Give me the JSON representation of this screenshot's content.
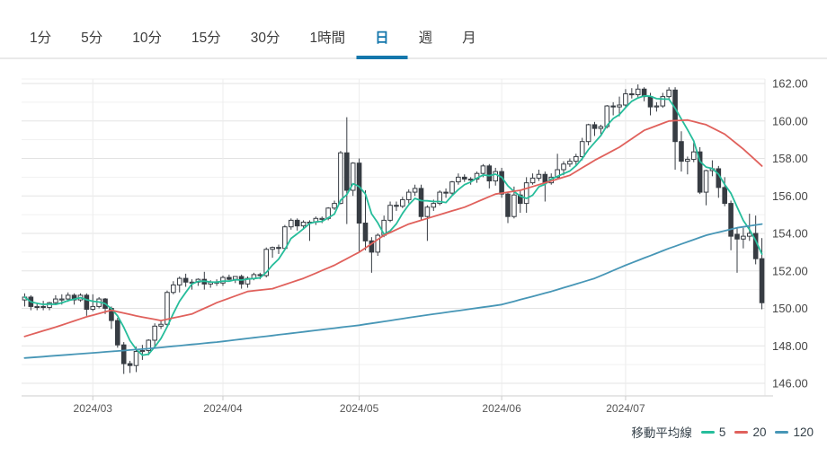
{
  "tabs": {
    "items": [
      {
        "label": "1分",
        "selected": false
      },
      {
        "label": "5分",
        "selected": false
      },
      {
        "label": "10分",
        "selected": false
      },
      {
        "label": "15分",
        "selected": false
      },
      {
        "label": "30分",
        "selected": false
      },
      {
        "label": "1時間",
        "selected": false
      },
      {
        "label": "日",
        "selected": true
      },
      {
        "label": "週",
        "selected": false
      },
      {
        "label": "月",
        "selected": false
      }
    ]
  },
  "chart": {
    "legend": {
      "title": "移動平均線",
      "items": [
        {
          "label": "5",
          "color": "#26bd9b"
        },
        {
          "label": "20",
          "color": "#e0615c"
        },
        {
          "label": "120",
          "color": "#4796b6"
        }
      ]
    }
  },
  "chart_data": {
    "type": "candlestick",
    "interval": "日",
    "y_axis": {
      "min": 146,
      "max": 162,
      "grid_step": 1,
      "label_step": 2,
      "labels": [
        "162.00",
        "160.00",
        "158.00",
        "156.00",
        "154.00",
        "152.00",
        "150.00",
        "148.00",
        "146.00"
      ]
    },
    "x_ticks": [
      {
        "label": "2024/03",
        "candle_index": 11
      },
      {
        "label": "2024/04",
        "candle_index": 32
      },
      {
        "label": "2024/05",
        "candle_index": 54
      },
      {
        "label": "2024/06",
        "candle_index": 77
      },
      {
        "label": "2024/07",
        "candle_index": 97
      }
    ],
    "candle_up_color": "#ffffff",
    "candle_down_color": "#373c43",
    "candle_outline_color": "#373c43",
    "grid_color_major": "#e3e3e3",
    "grid_color_minor": "#f1f1f1",
    "ohlc": [
      [
        150.45,
        150.8,
        150.1,
        150.6
      ],
      [
        150.6,
        150.7,
        149.9,
        150.1
      ],
      [
        150.1,
        150.3,
        149.9,
        150.1
      ],
      [
        150.1,
        150.4,
        149.9,
        150.05
      ],
      [
        150.05,
        150.35,
        149.9,
        150.3
      ],
      [
        150.3,
        150.7,
        150.2,
        150.5
      ],
      [
        150.5,
        150.75,
        150.2,
        150.5
      ],
      [
        150.5,
        150.85,
        150.35,
        150.7
      ],
      [
        150.7,
        150.8,
        150.2,
        150.45
      ],
      [
        150.45,
        150.8,
        150.35,
        150.7
      ],
      [
        150.7,
        150.8,
        149.6,
        149.95
      ],
      [
        149.95,
        150.75,
        149.85,
        150.1
      ],
      [
        150.1,
        150.6,
        150.0,
        150.5
      ],
      [
        150.5,
        150.55,
        149.7,
        150.0
      ],
      [
        150.0,
        150.1,
        148.9,
        149.35
      ],
      [
        149.35,
        149.5,
        147.9,
        148.05
      ],
      [
        148.05,
        148.2,
        146.5,
        147.05
      ],
      [
        147.05,
        147.2,
        146.55,
        146.95
      ],
      [
        146.95,
        147.95,
        146.6,
        147.7
      ],
      [
        147.7,
        148.05,
        147.25,
        147.75
      ],
      [
        147.75,
        148.35,
        147.5,
        148.3
      ],
      [
        148.3,
        149.2,
        148.0,
        149.05
      ],
      [
        149.05,
        149.35,
        148.9,
        149.15
      ],
      [
        149.15,
        150.95,
        149.0,
        150.85
      ],
      [
        150.85,
        151.45,
        150.75,
        151.25
      ],
      [
        151.25,
        151.7,
        150.85,
        151.6
      ],
      [
        151.6,
        151.85,
        151.15,
        151.4
      ],
      [
        151.4,
        151.55,
        151.0,
        151.4
      ],
      [
        151.4,
        151.6,
        151.2,
        151.55
      ],
      [
        151.55,
        151.95,
        151.0,
        151.3
      ],
      [
        151.3,
        151.5,
        151.1,
        151.4
      ],
      [
        151.4,
        151.55,
        151.2,
        151.35
      ],
      [
        151.35,
        151.75,
        151.2,
        151.65
      ],
      [
        151.65,
        151.8,
        151.5,
        151.55
      ],
      [
        151.55,
        151.7,
        151.35,
        151.7
      ],
      [
        151.7,
        151.8,
        151.05,
        151.3
      ],
      [
        151.3,
        151.7,
        151.1,
        151.6
      ],
      [
        151.6,
        151.9,
        151.5,
        151.8
      ],
      [
        151.8,
        151.9,
        151.55,
        151.75
      ],
      [
        151.75,
        153.25,
        151.65,
        153.15
      ],
      [
        153.15,
        153.3,
        152.7,
        153.25
      ],
      [
        153.25,
        153.4,
        152.9,
        153.2
      ],
      [
        153.2,
        154.45,
        153.15,
        154.35
      ],
      [
        154.35,
        154.8,
        154.2,
        154.7
      ],
      [
        154.7,
        154.8,
        154.15,
        154.4
      ],
      [
        154.4,
        154.7,
        154.2,
        154.6
      ],
      [
        154.6,
        154.7,
        153.6,
        154.6
      ],
      [
        154.6,
        154.9,
        154.45,
        154.8
      ],
      [
        154.8,
        154.9,
        154.55,
        154.8
      ],
      [
        154.8,
        155.4,
        154.7,
        155.35
      ],
      [
        155.35,
        155.75,
        155.25,
        155.6
      ],
      [
        155.6,
        158.4,
        155.55,
        158.3
      ],
      [
        158.3,
        160.2,
        154.5,
        156.3
      ],
      [
        156.3,
        157.8,
        156.0,
        157.75
      ],
      [
        157.75,
        158.0,
        153.0,
        154.55
      ],
      [
        154.55,
        156.3,
        153.1,
        153.6
      ],
      [
        153.6,
        153.8,
        151.9,
        153.0
      ],
      [
        153.0,
        154.0,
        152.8,
        153.9
      ],
      [
        153.9,
        154.95,
        153.8,
        154.7
      ],
      [
        154.7,
        155.7,
        154.6,
        155.5
      ],
      [
        155.5,
        155.7,
        155.2,
        155.45
      ],
      [
        155.45,
        155.95,
        155.35,
        155.8
      ],
      [
        155.8,
        156.35,
        155.6,
        156.2
      ],
      [
        156.2,
        156.6,
        156.0,
        156.4
      ],
      [
        156.4,
        156.6,
        154.7,
        154.9
      ],
      [
        154.9,
        155.5,
        153.6,
        155.4
      ],
      [
        155.4,
        155.8,
        155.2,
        155.6
      ],
      [
        155.6,
        156.3,
        155.5,
        156.2
      ],
      [
        156.2,
        156.4,
        155.9,
        156.15
      ],
      [
        156.15,
        156.8,
        156.0,
        156.75
      ],
      [
        156.75,
        157.2,
        156.6,
        157.0
      ],
      [
        157.0,
        157.15,
        156.75,
        156.9
      ],
      [
        156.9,
        157.0,
        156.6,
        156.9
      ],
      [
        156.9,
        157.3,
        156.7,
        157.2
      ],
      [
        157.2,
        157.7,
        157.0,
        157.6
      ],
      [
        157.6,
        157.7,
        156.4,
        156.8
      ],
      [
        156.8,
        157.5,
        156.55,
        157.3
      ],
      [
        157.3,
        157.5,
        155.9,
        156.1
      ],
      [
        156.1,
        156.2,
        154.55,
        154.9
      ],
      [
        154.9,
        156.5,
        154.8,
        156.05
      ],
      [
        156.05,
        156.3,
        155.1,
        155.6
      ],
      [
        155.6,
        157.0,
        155.1,
        156.7
      ],
      [
        156.7,
        157.2,
        156.6,
        156.95
      ],
      [
        156.95,
        157.4,
        156.8,
        157.15
      ],
      [
        157.15,
        157.3,
        155.7,
        156.7
      ],
      [
        156.7,
        157.2,
        156.6,
        157.0
      ],
      [
        157.0,
        158.25,
        156.9,
        157.4
      ],
      [
        157.4,
        157.85,
        157.1,
        157.7
      ],
      [
        157.7,
        158.0,
        157.55,
        157.85
      ],
      [
        157.85,
        158.25,
        157.6,
        158.1
      ],
      [
        158.1,
        159.1,
        157.9,
        158.9
      ],
      [
        158.9,
        159.85,
        158.7,
        159.8
      ],
      [
        159.8,
        159.95,
        159.2,
        159.6
      ],
      [
        159.6,
        159.8,
        159.3,
        159.7
      ],
      [
        159.7,
        160.85,
        159.6,
        160.8
      ],
      [
        160.8,
        161.0,
        160.3,
        160.75
      ],
      [
        160.75,
        161.3,
        160.25,
        160.85
      ],
      [
        160.85,
        161.7,
        160.7,
        161.45
      ],
      [
        161.45,
        161.75,
        161.2,
        161.4
      ],
      [
        161.4,
        161.95,
        161.2,
        161.7
      ],
      [
        161.7,
        161.8,
        161.05,
        161.3
      ],
      [
        161.3,
        161.5,
        160.3,
        160.75
      ],
      [
        160.75,
        161.0,
        160.5,
        160.8
      ],
      [
        160.8,
        161.5,
        160.7,
        161.3
      ],
      [
        161.3,
        161.8,
        161.15,
        161.65
      ],
      [
        161.65,
        161.8,
        157.4,
        158.9
      ],
      [
        158.9,
        159.45,
        157.3,
        157.85
      ],
      [
        157.85,
        158.1,
        157.15,
        157.95
      ],
      [
        157.95,
        158.85,
        157.8,
        158.35
      ],
      [
        158.35,
        158.6,
        156.1,
        156.2
      ],
      [
        156.2,
        157.4,
        155.5,
        157.35
      ],
      [
        157.35,
        157.9,
        157.05,
        157.45
      ],
      [
        157.45,
        157.6,
        155.9,
        156.45
      ],
      [
        156.45,
        157.0,
        155.45,
        155.6
      ],
      [
        155.6,
        155.75,
        153.1,
        153.85
      ],
      [
        153.95,
        154.3,
        151.9,
        153.7
      ],
      [
        153.7,
        154.3,
        153.2,
        153.85
      ],
      [
        153.85,
        155.05,
        153.6,
        154.0
      ],
      [
        154.0,
        154.95,
        152.35,
        152.65
      ],
      [
        152.65,
        153.75,
        149.95,
        150.3
      ]
    ],
    "moving_averages": [
      {
        "label": "5",
        "color": "#26bd9b",
        "derivation": "sma_of_closes",
        "window": 5
      },
      {
        "label": "20",
        "color": "#e0615c",
        "control_points": [
          [
            0,
            148.5
          ],
          [
            5,
            149.0
          ],
          [
            10,
            149.55
          ],
          [
            14,
            149.9
          ],
          [
            18,
            149.6
          ],
          [
            22,
            149.35
          ],
          [
            27,
            149.7
          ],
          [
            31,
            150.3
          ],
          [
            36,
            150.9
          ],
          [
            40,
            151.05
          ],
          [
            45,
            151.6
          ],
          [
            50,
            152.3
          ],
          [
            54,
            153.0
          ],
          [
            58,
            153.9
          ],
          [
            62,
            154.5
          ],
          [
            66,
            154.9
          ],
          [
            71,
            155.4
          ],
          [
            76,
            156.1
          ],
          [
            80,
            156.3
          ],
          [
            84,
            156.7
          ],
          [
            88,
            157.1
          ],
          [
            92,
            157.9
          ],
          [
            96,
            158.6
          ],
          [
            100,
            159.5
          ],
          [
            104,
            160.0
          ],
          [
            107,
            160.05
          ],
          [
            110,
            159.8
          ],
          [
            113,
            159.3
          ],
          [
            116,
            158.5
          ],
          [
            119,
            157.6
          ]
        ]
      },
      {
        "label": "120",
        "color": "#4796b6",
        "control_points": [
          [
            0,
            147.35
          ],
          [
            10,
            147.6
          ],
          [
            20,
            147.85
          ],
          [
            31,
            148.2
          ],
          [
            40,
            148.55
          ],
          [
            54,
            149.1
          ],
          [
            64,
            149.6
          ],
          [
            77,
            150.2
          ],
          [
            85,
            150.9
          ],
          [
            92,
            151.6
          ],
          [
            97,
            152.3
          ],
          [
            104,
            153.2
          ],
          [
            110,
            153.9
          ],
          [
            115,
            154.3
          ],
          [
            119,
            154.5
          ]
        ]
      }
    ]
  }
}
